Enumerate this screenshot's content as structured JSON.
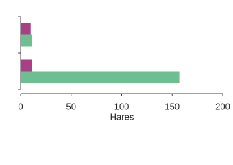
{
  "chart_data": {
    "type": "bar",
    "orientation": "horizontal",
    "x_label": "Hares",
    "categories": [
      null,
      null
    ],
    "series": [
      {
        "color": "#a93f85",
        "values": [
          10,
          11
        ]
      },
      {
        "color": "#6dbf91",
        "values": [
          11,
          157
        ]
      }
    ],
    "xlim": [
      0,
      200
    ],
    "xticks": [
      0,
      50,
      100,
      150,
      200
    ],
    "grid": false
  }
}
